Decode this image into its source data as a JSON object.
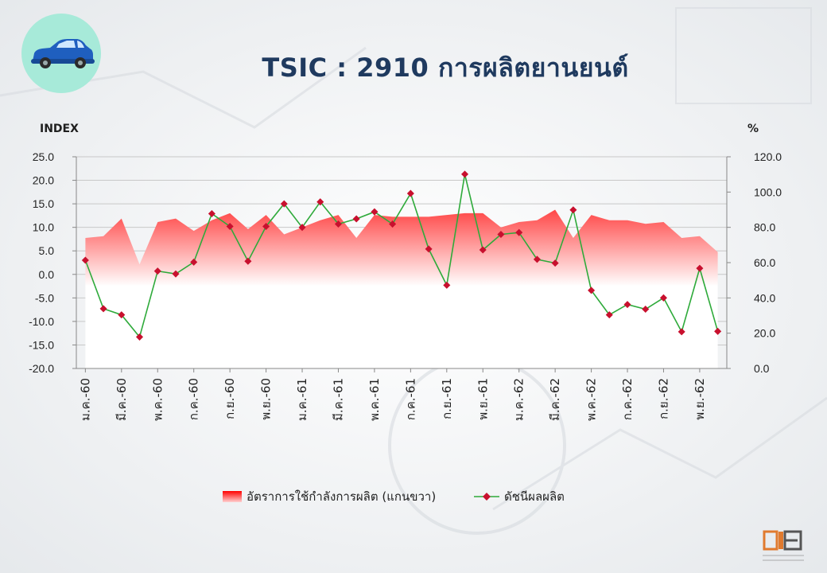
{
  "header": {
    "title": "TSIC : 2910 การผลิตยานยนต์",
    "icon": "car-icon",
    "badge_color": "#a7ead9"
  },
  "axes": {
    "left_title": "INDEX",
    "right_title": "%"
  },
  "legend": {
    "area_label": "อัตราการใช้กำลังการผลิต (แกนขวา)",
    "line_label": "ดัชนีผลผลิต"
  },
  "colors": {
    "area_top": "#ff0000",
    "area_bottom": "#ffffff",
    "line": "#2eaa3a",
    "marker": "#c8102e",
    "title": "#1f3a5f"
  },
  "chart_data": {
    "type": "line",
    "x_tick_labels": [
      "ม.ค.-60",
      "มี.ค.-60",
      "พ.ค.-60",
      "ก.ค.-60",
      "ก.ย.-60",
      "พ.ย.-60",
      "ม.ค.-61",
      "มี.ค.-61",
      "พ.ค.-61",
      "ก.ค.-61",
      "ก.ย.-61",
      "พ.ย.-61",
      "ม.ค.-62",
      "มี.ค.-62",
      "พ.ค.-62",
      "ก.ค.-62",
      "ก.ย.-62",
      "พ.ย.-62"
    ],
    "left_axis": {
      "title": "INDEX",
      "ylim": [
        -20,
        25
      ],
      "ticks": [
        "25.0",
        "20.0",
        "15.0",
        "10.0",
        "5.0",
        "0.0",
        "-5.0",
        "-10.0",
        "-15.0",
        "-20.0"
      ]
    },
    "right_axis": {
      "title": "%",
      "ylim": [
        0,
        120
      ],
      "ticks": [
        "120.0",
        "100.0",
        "80.0",
        "60.0",
        "40.0",
        "20.0",
        "0.0"
      ]
    },
    "grid": true,
    "legend_position": "bottom",
    "series": [
      {
        "name": "อัตราการใช้กำลังการผลิต (แกนขวา)",
        "type": "area",
        "axis": "right",
        "values": [
          74,
          75,
          85,
          59,
          83,
          85,
          78,
          84,
          88,
          79,
          87,
          76,
          80,
          84,
          87,
          74,
          87,
          86,
          86,
          86,
          87,
          88,
          88,
          80,
          83,
          84,
          90,
          74,
          87,
          84,
          84,
          82,
          83,
          74,
          75,
          66
        ]
      },
      {
        "name": "ดัชนีผลผลิต",
        "type": "line",
        "axis": "left",
        "values": [
          3.0,
          -7.3,
          -8.6,
          -13.3,
          0.7,
          0.1,
          2.6,
          12.9,
          10.2,
          2.8,
          10.2,
          15.0,
          10.0,
          15.4,
          10.7,
          11.8,
          13.3,
          10.7,
          17.2,
          5.4,
          -2.3,
          21.3,
          5.2,
          8.5,
          8.9,
          3.2,
          2.4,
          13.7,
          -3.4,
          -8.6,
          -6.4,
          -7.4,
          -5.0,
          -12.2,
          1.3,
          -12.1
        ]
      }
    ]
  },
  "footer": {
    "logo_icon": "oie-logo-icon"
  }
}
